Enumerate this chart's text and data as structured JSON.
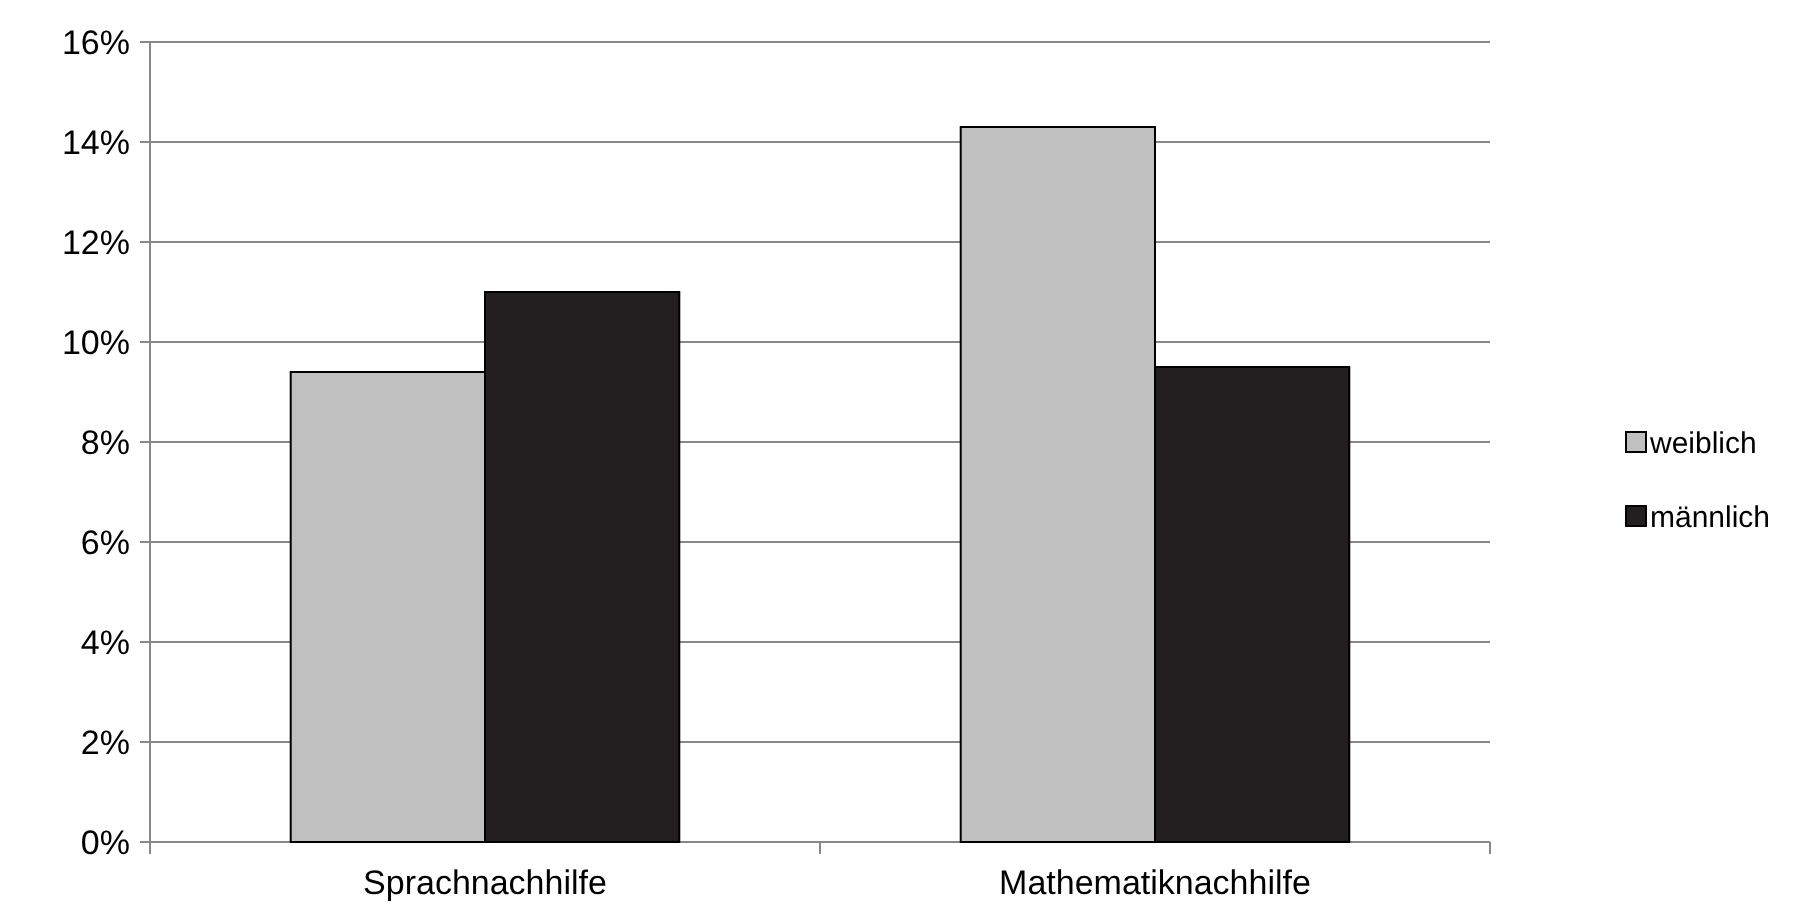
{
  "chart_data": {
    "type": "bar",
    "categories": [
      "Sprachnachhilfe",
      "Mathematiknachhilfe"
    ],
    "series": [
      {
        "name": "weiblich",
        "color": "#c0c0c0",
        "values": [
          9.4,
          14.3
        ]
      },
      {
        "name": "männlich",
        "color": "#231f20",
        "values": [
          11.0,
          9.5
        ]
      }
    ],
    "ylim": [
      0,
      16
    ],
    "yticks": [
      {
        "value": 0,
        "label": "0%"
      },
      {
        "value": 2,
        "label": "2%"
      },
      {
        "value": 4,
        "label": "4%"
      },
      {
        "value": 6,
        "label": "6%"
      },
      {
        "value": 8,
        "label": "8%"
      },
      {
        "value": 10,
        "label": "10%"
      },
      {
        "value": 12,
        "label": "12%"
      },
      {
        "value": 14,
        "label": "14%"
      },
      {
        "value": 16,
        "label": "16%"
      }
    ],
    "grid": "y",
    "legend": "right"
  }
}
